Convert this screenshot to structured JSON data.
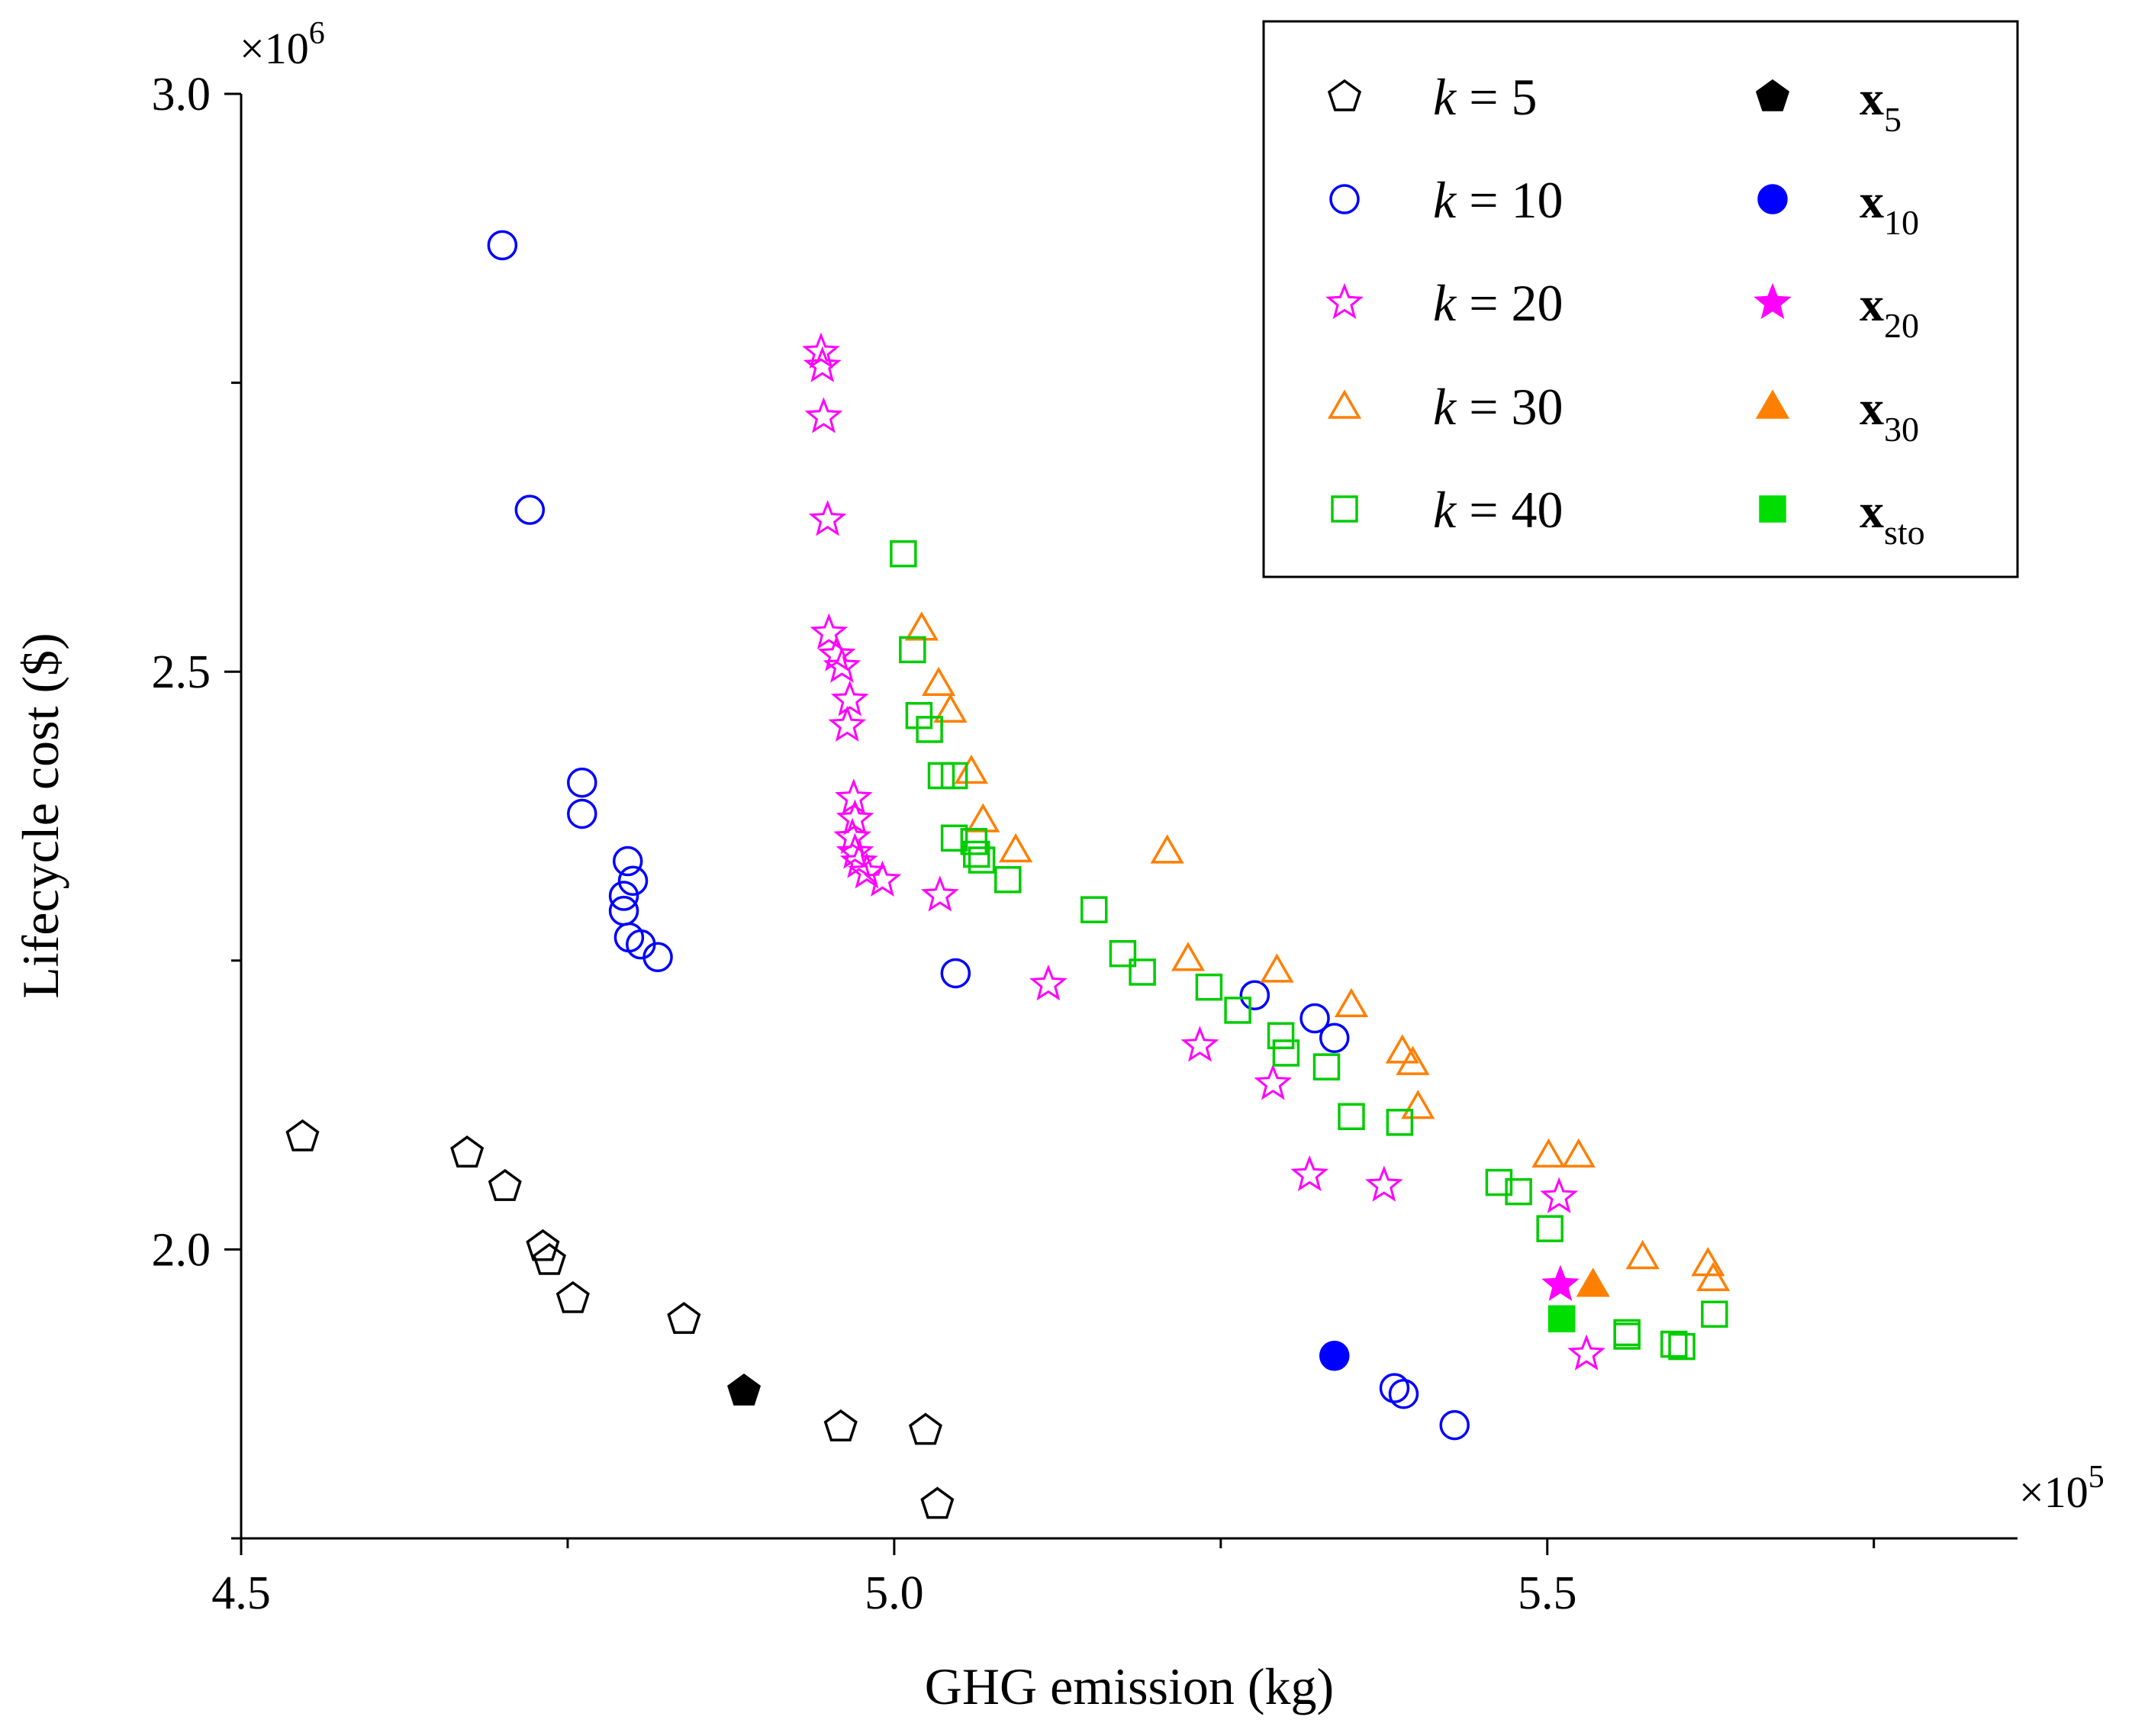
{
  "chart_data": {
    "type": "scatter",
    "xlabel": "GHG emission (kg)",
    "ylabel": "Lifecycle cost ($)",
    "x_multiplier": "×10",
    "x_multiplier_exp": "5",
    "y_multiplier": "×10",
    "y_multiplier_exp": "6",
    "xlim": [
      4.5,
      5.86
    ],
    "ylim": [
      1.75,
      3.0
    ],
    "x_ticks": [
      4.5,
      5.0,
      5.5
    ],
    "x_tick_labels": [
      "4.5",
      "5.0",
      "5.5"
    ],
    "x_minor_ticks": [
      4.75,
      5.25,
      5.75
    ],
    "y_ticks": [
      2.0,
      2.5,
      3.0
    ],
    "y_tick_labels": [
      "2.0",
      "2.5",
      "3.0"
    ],
    "y_minor_ticks": [
      1.75,
      2.25,
      2.75
    ],
    "grid": false,
    "legend_position": "top-right",
    "series": [
      {
        "name": "k = 5",
        "name_prefix": "k",
        "name_suffix": " = 5",
        "marker": "pentagon",
        "filled": false,
        "color": "#000000",
        "points": [
          [
            4.547,
            2.098
          ],
          [
            4.673,
            2.084
          ],
          [
            4.702,
            2.055
          ],
          [
            4.731,
            2.003
          ],
          [
            4.736,
            1.991
          ],
          [
            4.754,
            1.958
          ],
          [
            4.839,
            1.94
          ],
          [
            4.959,
            1.847
          ],
          [
            5.024,
            1.844
          ],
          [
            5.033,
            1.78
          ]
        ]
      },
      {
        "name": "k = 10",
        "name_prefix": "k",
        "name_suffix": " = 10",
        "marker": "circle",
        "filled": false,
        "color": "#0000ff",
        "points": [
          [
            4.7,
            2.869
          ],
          [
            4.721,
            2.64
          ],
          [
            4.761,
            2.404
          ],
          [
            4.761,
            2.377
          ],
          [
            4.796,
            2.336
          ],
          [
            4.8,
            2.319
          ],
          [
            4.793,
            2.306
          ],
          [
            4.793,
            2.293
          ],
          [
            4.797,
            2.27
          ],
          [
            4.806,
            2.264
          ],
          [
            4.819,
            2.253
          ],
          [
            5.047,
            2.239
          ],
          [
            5.276,
            2.22
          ],
          [
            5.322,
            2.2
          ],
          [
            5.337,
            2.183
          ],
          [
            5.383,
            1.88
          ],
          [
            5.39,
            1.875
          ],
          [
            5.429,
            1.848
          ]
        ]
      },
      {
        "name": "k = 20",
        "name_prefix": "k",
        "name_suffix": " = 20",
        "marker": "star",
        "filled": false,
        "color": "#ff00ff",
        "points": [
          [
            4.944,
            2.777
          ],
          [
            4.945,
            2.765
          ],
          [
            4.946,
            2.721
          ],
          [
            4.949,
            2.632
          ],
          [
            4.95,
            2.534
          ],
          [
            4.956,
            2.515
          ],
          [
            4.96,
            2.505
          ],
          [
            4.966,
            2.476
          ],
          [
            4.964,
            2.454
          ],
          [
            4.969,
            2.391
          ],
          [
            4.97,
            2.373
          ],
          [
            4.968,
            2.357
          ],
          [
            4.97,
            2.344
          ],
          [
            4.973,
            2.336
          ],
          [
            4.979,
            2.327
          ],
          [
            4.991,
            2.32
          ],
          [
            5.035,
            2.307
          ],
          [
            5.118,
            2.23
          ],
          [
            5.234,
            2.177
          ],
          [
            5.29,
            2.144
          ],
          [
            5.318,
            2.065
          ],
          [
            5.375,
            2.056
          ],
          [
            5.509,
            2.046
          ],
          [
            5.53,
            1.91
          ]
        ]
      },
      {
        "name": "k = 30",
        "name_prefix": "k",
        "name_suffix": " = 30",
        "marker": "triangle",
        "filled": false,
        "color": "#ff7f00",
        "points": [
          [
            5.021,
            2.538
          ],
          [
            5.034,
            2.49
          ],
          [
            5.043,
            2.467
          ],
          [
            5.059,
            2.414
          ],
          [
            5.068,
            2.372
          ],
          [
            5.093,
            2.346
          ],
          [
            5.209,
            2.345
          ],
          [
            5.225,
            2.252
          ],
          [
            5.293,
            2.242
          ],
          [
            5.35,
            2.212
          ],
          [
            5.389,
            2.172
          ],
          [
            5.397,
            2.162
          ],
          [
            5.401,
            2.124
          ],
          [
            5.501,
            2.082
          ],
          [
            5.524,
            2.082
          ],
          [
            5.573,
            1.994
          ],
          [
            5.623,
            1.988
          ],
          [
            5.627,
            1.975
          ]
        ]
      },
      {
        "name": "k = 40",
        "name_prefix": "k",
        "name_suffix": " = 40",
        "marker": "square",
        "filled": false,
        "color": "#00cc00",
        "points": [
          [
            5.007,
            2.602
          ],
          [
            5.014,
            2.519
          ],
          [
            5.019,
            2.462
          ],
          [
            5.027,
            2.45
          ],
          [
            5.036,
            2.41
          ],
          [
            5.046,
            2.41
          ],
          [
            5.046,
            2.356
          ],
          [
            5.061,
            2.353
          ],
          [
            5.063,
            2.342
          ],
          [
            5.067,
            2.337
          ],
          [
            5.087,
            2.32
          ],
          [
            5.153,
            2.294
          ],
          [
            5.175,
            2.256
          ],
          [
            5.19,
            2.24
          ],
          [
            5.241,
            2.227
          ],
          [
            5.263,
            2.207
          ],
          [
            5.296,
            2.185
          ],
          [
            5.3,
            2.17
          ],
          [
            5.331,
            2.158
          ],
          [
            5.35,
            2.115
          ],
          [
            5.387,
            2.11
          ],
          [
            5.463,
            2.058
          ],
          [
            5.478,
            2.05
          ],
          [
            5.502,
            2.018
          ],
          [
            5.561,
            1.928
          ],
          [
            5.561,
            1.925
          ],
          [
            5.597,
            1.918
          ],
          [
            5.603,
            1.916
          ],
          [
            5.628,
            1.944
          ]
        ]
      },
      {
        "name": "x5",
        "name_prefix": "x",
        "name_sub": "5",
        "marker": "pentagon",
        "filled": true,
        "color": "#000000",
        "points": [
          [
            4.885,
            1.878
          ]
        ]
      },
      {
        "name": "x10",
        "name_prefix": "x",
        "name_sub": "10",
        "marker": "circle",
        "filled": true,
        "color": "#0000ff",
        "points": [
          [
            5.337,
            1.908
          ]
        ]
      },
      {
        "name": "x20",
        "name_prefix": "x",
        "name_sub": "20",
        "marker": "star",
        "filled": true,
        "color": "#ff00ff",
        "points": [
          [
            5.51,
            1.97
          ]
        ]
      },
      {
        "name": "x30",
        "name_prefix": "x",
        "name_sub": "30",
        "marker": "triangle",
        "filled": true,
        "color": "#ff7f00",
        "points": [
          [
            5.535,
            1.97
          ]
        ]
      },
      {
        "name": "xsto",
        "name_prefix": "x",
        "name_sub": "sto",
        "marker": "square",
        "filled": true,
        "color": "#00dd00",
        "points": [
          [
            5.511,
            1.94
          ]
        ]
      }
    ]
  }
}
